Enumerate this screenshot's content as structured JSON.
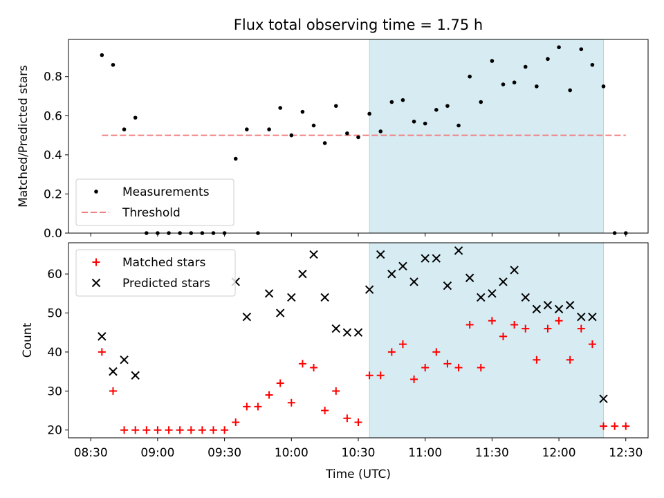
{
  "title": "Flux total observing time = 1.75 h",
  "colors": {
    "measurements": "#000000",
    "threshold": "#f08080",
    "matched": "#ff0000",
    "predicted": "#000000",
    "highlight": "#add8e6"
  },
  "chart_data": [
    {
      "type": "scatter",
      "ylabel": "Matched/Predicted stars",
      "xlim": [
        "08:20",
        "12:40"
      ],
      "ylim": [
        0,
        0.99
      ],
      "yticks": [
        "0.0",
        "0.2",
        "0.4",
        "0.6",
        "0.8"
      ],
      "highlight_span": [
        "10:35",
        "12:20"
      ],
      "legend_position": "lower-left",
      "legend": [
        "Measurements",
        "Threshold"
      ],
      "threshold": {
        "name": "Threshold",
        "value": 0.5,
        "x_range": [
          "08:35",
          "12:30"
        ]
      },
      "series": [
        {
          "name": "Measurements",
          "marker": "dot",
          "x": [
            "08:35",
            "08:40",
            "08:45",
            "08:50",
            "08:55",
            "09:00",
            "09:05",
            "09:10",
            "09:15",
            "09:20",
            "09:25",
            "09:30",
            "09:35",
            "09:40",
            "09:45",
            "09:50",
            "09:55",
            "10:00",
            "10:05",
            "10:10",
            "10:15",
            "10:20",
            "10:25",
            "10:30",
            "10:35",
            "10:40",
            "10:45",
            "10:50",
            "10:55",
            "11:00",
            "11:05",
            "11:10",
            "11:15",
            "11:20",
            "11:25",
            "11:30",
            "11:35",
            "11:40",
            "11:45",
            "11:50",
            "11:55",
            "12:00",
            "12:05",
            "12:10",
            "12:15",
            "12:20",
            "12:25",
            "12:30"
          ],
          "values": [
            0.91,
            0.86,
            0.53,
            0.59,
            0.0,
            0.0,
            0.0,
            0.0,
            0.0,
            0.0,
            0.0,
            0.0,
            0.38,
            0.53,
            0.0,
            0.53,
            0.64,
            0.5,
            0.62,
            0.55,
            0.46,
            0.65,
            0.51,
            0.49,
            0.61,
            0.52,
            0.67,
            0.68,
            0.57,
            0.56,
            0.63,
            0.65,
            0.55,
            0.8,
            0.67,
            0.88,
            0.76,
            0.77,
            0.85,
            0.75,
            0.89,
            0.95,
            0.73,
            0.94,
            0.86,
            0.75,
            0.0,
            0.0
          ]
        }
      ]
    },
    {
      "type": "scatter",
      "xlabel": "Time (UTC)",
      "ylabel": "Count",
      "xlim": [
        "08:20",
        "12:40"
      ],
      "ylim": [
        18,
        68
      ],
      "xticks": [
        "08:30",
        "09:00",
        "09:30",
        "10:00",
        "10:30",
        "11:00",
        "11:30",
        "12:00",
        "12:30"
      ],
      "yticks": [
        "20",
        "30",
        "40",
        "50",
        "60"
      ],
      "highlight_span": [
        "10:35",
        "12:20"
      ],
      "legend_position": "upper-left",
      "legend": [
        "Matched stars",
        "Predicted stars"
      ],
      "series": [
        {
          "name": "Matched stars",
          "marker": "plus",
          "x": [
            "08:35",
            "08:40",
            "08:45",
            "08:50",
            "08:55",
            "09:00",
            "09:05",
            "09:10",
            "09:15",
            "09:20",
            "09:25",
            "09:30",
            "09:35",
            "09:40",
            "09:45",
            "09:50",
            "09:55",
            "10:00",
            "10:05",
            "10:10",
            "10:15",
            "10:20",
            "10:25",
            "10:30",
            "10:35",
            "10:40",
            "10:45",
            "10:50",
            "10:55",
            "11:00",
            "11:05",
            "11:10",
            "11:15",
            "11:20",
            "11:25",
            "11:30",
            "11:35",
            "11:40",
            "11:45",
            "11:50",
            "11:55",
            "12:00",
            "12:05",
            "12:10",
            "12:15",
            "12:20",
            "12:25",
            "12:30"
          ],
          "values": [
            40,
            30,
            20,
            20,
            20,
            20,
            20,
            20,
            20,
            20,
            20,
            20,
            22,
            26,
            26,
            29,
            32,
            27,
            37,
            36,
            25,
            30,
            23,
            22,
            34,
            34,
            40,
            42,
            33,
            36,
            40,
            37,
            36,
            47,
            36,
            48,
            44,
            47,
            46,
            38,
            46,
            48,
            38,
            46,
            42,
            21,
            21,
            21
          ]
        },
        {
          "name": "Predicted stars",
          "marker": "x",
          "x": [
            "08:35",
            "08:40",
            "08:45",
            "08:50",
            "09:35",
            "09:40",
            "09:50",
            "09:55",
            "10:00",
            "10:05",
            "10:10",
            "10:15",
            "10:20",
            "10:25",
            "10:30",
            "10:35",
            "10:40",
            "10:45",
            "10:50",
            "10:55",
            "11:00",
            "11:05",
            "11:10",
            "11:15",
            "11:20",
            "11:25",
            "11:30",
            "11:35",
            "11:40",
            "11:45",
            "11:50",
            "11:55",
            "12:00",
            "12:05",
            "12:10",
            "12:15",
            "12:20"
          ],
          "values": [
            44,
            35,
            38,
            34,
            58,
            49,
            55,
            50,
            54,
            60,
            65,
            54,
            46,
            45,
            45,
            56,
            65,
            60,
            62,
            58,
            64,
            64,
            57,
            66,
            59,
            54,
            55,
            58,
            61,
            54,
            51,
            52,
            51,
            52,
            49,
            49,
            28
          ]
        }
      ]
    }
  ]
}
